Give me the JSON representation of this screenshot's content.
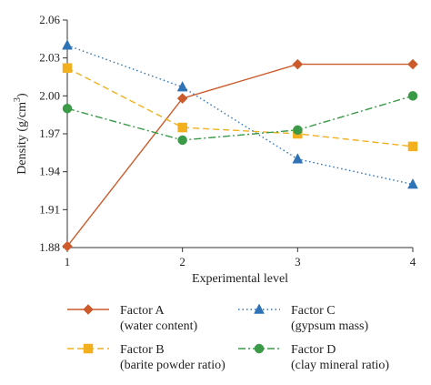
{
  "chart_data": {
    "type": "line",
    "title": "",
    "xlabel": "Experimental level",
    "ylabel": "Density (g/cm³)",
    "ylabel_main": "Density (g/cm",
    "ylabel_sup": "3",
    "ylabel_close": ")",
    "x": [
      1,
      2,
      3,
      4
    ],
    "x_ticks": [
      "1",
      "2",
      "3",
      "4"
    ],
    "xlim": [
      1,
      4
    ],
    "ylim": [
      1.88,
      2.06
    ],
    "y_ticks": [
      "1.88",
      "1.91",
      "1.94",
      "1.97",
      "2.00",
      "2.03",
      "2.06"
    ],
    "grid": false,
    "legend_position": "bottom",
    "series": [
      {
        "name": "Factor A",
        "subtitle": "(water content)",
        "values": [
          1.881,
          1.998,
          2.025,
          2.025
        ],
        "color": "#cc5a2a",
        "marker": "diamond",
        "line_style": "solid"
      },
      {
        "name": "Factor B",
        "subtitle": "(barite powder ratio)",
        "values": [
          2.022,
          1.975,
          1.97,
          1.96
        ],
        "color": "#f2b01e",
        "marker": "square",
        "line_style": "dashed"
      },
      {
        "name": "Factor C",
        "subtitle": "(gypsum mass)",
        "values": [
          2.04,
          2.007,
          1.95,
          1.93
        ],
        "color": "#2f73b7",
        "marker": "triangle",
        "line_style": "dotted"
      },
      {
        "name": "Factor D",
        "subtitle": "(clay mineral ratio)",
        "values": [
          1.99,
          1.965,
          1.973,
          2.0
        ],
        "color": "#3a9a48",
        "marker": "circle",
        "line_style": "dashdot"
      }
    ]
  }
}
